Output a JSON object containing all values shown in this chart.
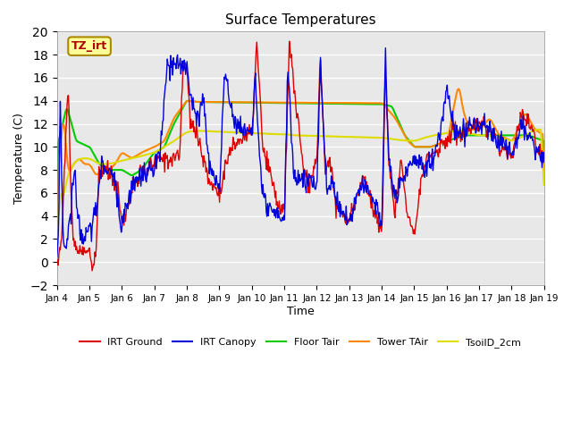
{
  "title": "Surface Temperatures",
  "xlabel": "Time",
  "ylabel": "Temperature (C)",
  "ylim": [
    -2,
    20
  ],
  "figure_facecolor": "#ffffff",
  "plot_bg_color": "#e8e8e8",
  "grid_color": "#ffffff",
  "series_colors": {
    "IRT Ground": "#dd0000",
    "IRT Canopy": "#0000dd",
    "Floor Tair": "#00cc00",
    "Tower TAir": "#ff8800",
    "TsoilD_2cm": "#dddd00"
  },
  "annotation_text": "TZ_irt",
  "annotation_color": "#aa0000",
  "annotation_bg": "#ffff99",
  "annotation_border": "#aa8800",
  "x_tick_labels": [
    "Jan 4",
    "Jan 5",
    "Jan 6",
    "Jan 7",
    "Jan 8",
    "Jan 9",
    "Jan 10",
    "Jan 11",
    "Jan 12",
    "Jan 13",
    "Jan 14",
    "Jan 15",
    "Jan 16",
    "Jan 17",
    "Jan 18",
    "Jan 19"
  ],
  "legend_entries": [
    "IRT Ground",
    "IRT Canopy",
    "Floor Tair",
    "Tower TAir",
    "TsoilD_2cm"
  ]
}
